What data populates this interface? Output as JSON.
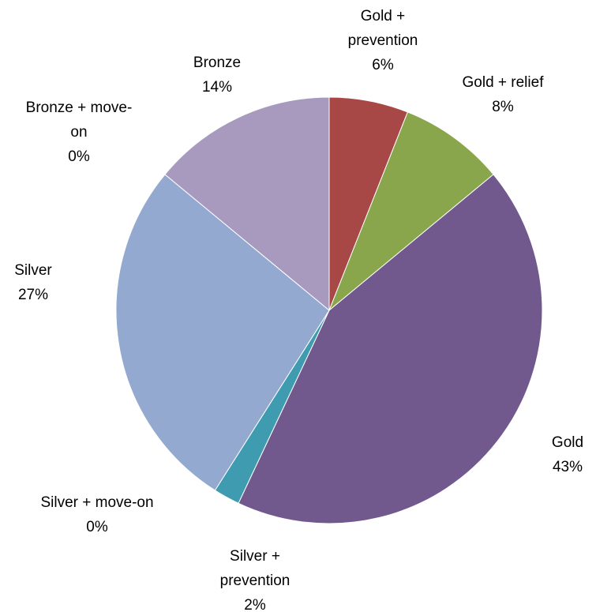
{
  "chart_data": {
    "type": "pie",
    "start_angle_deg": 0,
    "direction": "clockwise",
    "slices": [
      {
        "label_lines": [
          "Gold +",
          "prevention"
        ],
        "label": "Gold + prevention",
        "value": 6,
        "pct_text": "6%",
        "color": "#A84846"
      },
      {
        "label_lines": [
          "Gold + relief"
        ],
        "label": "Gold + relief",
        "value": 8,
        "pct_text": "8%",
        "color": "#8AA64C"
      },
      {
        "label_lines": [
          "Gold"
        ],
        "label": "Gold",
        "value": 43,
        "pct_text": "43%",
        "color": "#71598E"
      },
      {
        "label_lines": [
          "Silver +",
          "prevention"
        ],
        "label": "Silver + prevention",
        "value": 2,
        "pct_text": "2%",
        "color": "#3F9BAF"
      },
      {
        "label_lines": [
          "Silver + move-on"
        ],
        "label": "Silver + move-on",
        "value": 0,
        "pct_text": "0%",
        "color": "#E68B3C"
      },
      {
        "label_lines": [
          "Silver"
        ],
        "label": "Silver",
        "value": 27,
        "pct_text": "27%",
        "color": "#93A9CF"
      },
      {
        "label_lines": [
          "Bronze + move-",
          "on"
        ],
        "label": "Bronze + move-on",
        "value": 0,
        "pct_text": "0%",
        "color": "#4F81BD"
      },
      {
        "label_lines": [
          "Bronze"
        ],
        "label": "Bronze",
        "value": 14,
        "pct_text": "14%",
        "color": "#A899BE"
      }
    ]
  }
}
